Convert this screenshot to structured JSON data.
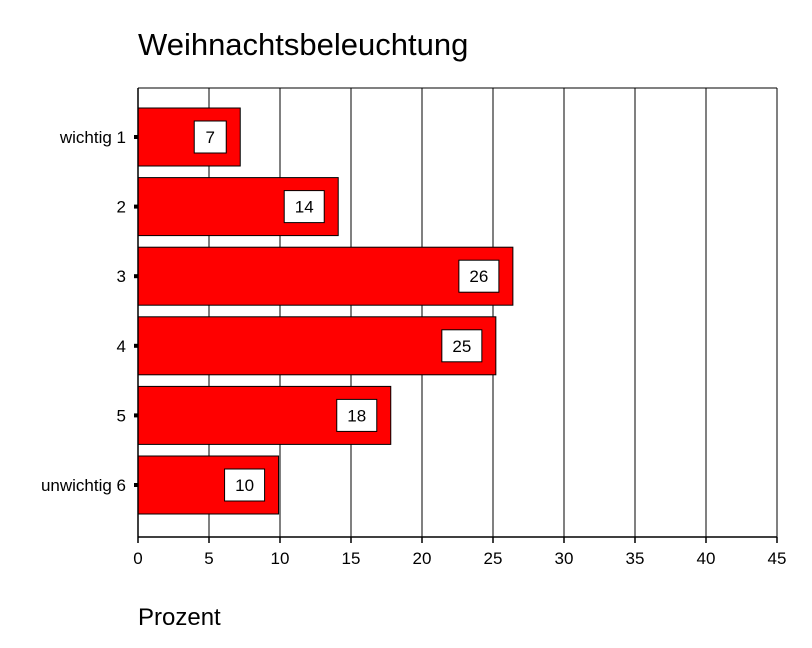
{
  "chart_data": {
    "type": "bar",
    "orientation": "horizontal",
    "title": "Weihnachtsbeleuchtung",
    "xlabel": "Prozent",
    "ylabel": "",
    "categories": [
      "wichtig 1",
      "2",
      "3",
      "4",
      "5",
      "unwichtig 6"
    ],
    "values": [
      7.2,
      14.1,
      26.4,
      25.2,
      17.8,
      9.9
    ],
    "data_labels": [
      "7",
      "14",
      "26",
      "25",
      "18",
      "10"
    ],
    "xlim": [
      0,
      45
    ],
    "xticks": [
      0,
      5,
      10,
      15,
      20,
      25,
      30,
      35,
      40,
      45
    ],
    "grid": "vertical",
    "bar_color": "#ff0000",
    "legend": "none"
  }
}
